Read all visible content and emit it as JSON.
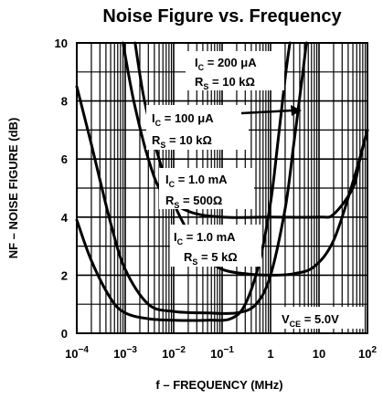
{
  "chart_data": {
    "type": "line",
    "title": "Noise Figure vs. Frequency",
    "xlabel": "f – FREQUENCY (MHz)",
    "ylabel": "NF – NOISE FIGURE (dB)",
    "x_scale": "log",
    "xlim": [
      0.0001,
      100
    ],
    "ylim": [
      0,
      10
    ],
    "grid": true,
    "x_tick_labels": [
      {
        "base": "10",
        "exp": "−4"
      },
      {
        "base": "10",
        "exp": "−3"
      },
      {
        "base": "10",
        "exp": "−2"
      },
      {
        "base": "10",
        "exp": "−1"
      },
      {
        "base": "1",
        "exp": ""
      },
      {
        "base": "10",
        "exp": ""
      },
      {
        "base": "10",
        "exp": "2"
      }
    ],
    "y_tick_labels": [
      "0",
      "2",
      "4",
      "6",
      "8",
      "10"
    ],
    "condition_label": {
      "main": "V",
      "sub": "CE",
      "value": " = 5.0V"
    },
    "series": [
      {
        "ic": "I",
        "ic_sub": "C",
        "ic_value": " = 200 μA",
        "rs": "R",
        "rs_sub": "S",
        "rs_value": " = 10 kΩ",
        "points": [
          [
            0.0009,
            10
          ],
          [
            0.0015,
            8
          ],
          [
            0.003,
            6
          ],
          [
            0.006,
            4.8
          ],
          [
            0.02,
            4.2
          ],
          [
            0.1,
            4.0
          ],
          [
            1,
            4.0
          ],
          [
            10,
            4.0
          ],
          [
            20,
            4.1
          ],
          [
            50,
            5
          ],
          [
            70,
            6
          ],
          [
            100,
            7
          ]
        ]
      },
      {
        "ic": "I",
        "ic_sub": "C",
        "ic_value": " = 100 μA",
        "rs": "R",
        "rs_sub": "S",
        "rs_value": " = 10 kΩ",
        "points": [
          [
            0.0016,
            10
          ],
          [
            0.0025,
            8
          ],
          [
            0.005,
            6
          ],
          [
            0.01,
            4.5
          ],
          [
            0.02,
            3.5
          ],
          [
            0.05,
            2.6
          ],
          [
            0.1,
            2.2
          ],
          [
            0.3,
            2.05
          ],
          [
            1,
            2.0
          ],
          [
            3,
            2.05
          ],
          [
            8,
            2.3
          ],
          [
            20,
            3.2
          ],
          [
            50,
            5.2
          ],
          [
            100,
            7
          ]
        ]
      },
      {
        "ic": "I",
        "ic_sub": "C",
        "ic_value": " = 1.0 mA",
        "rs": "R",
        "rs_sub": "S",
        "rs_value": " = 500Ω",
        "points": [
          [
            0.0001,
            3.9
          ],
          [
            0.0002,
            2.5
          ],
          [
            0.0005,
            1.2
          ],
          [
            0.001,
            0.7
          ],
          [
            0.003,
            0.5
          ],
          [
            0.01,
            0.45
          ],
          [
            0.05,
            0.45
          ],
          [
            0.15,
            0.5
          ],
          [
            0.3,
            1
          ],
          [
            0.6,
            2.5
          ],
          [
            1,
            4.5
          ],
          [
            1.4,
            6.5
          ],
          [
            2,
            8.8
          ],
          [
            2.5,
            10
          ]
        ]
      },
      {
        "ic": "I",
        "ic_sub": "C",
        "ic_value": " = 1.0 mA",
        "rs": "R",
        "rs_sub": "S",
        "rs_value": " = 5 kΩ",
        "points": [
          [
            0.0001,
            8.5
          ],
          [
            0.0002,
            6.5
          ],
          [
            0.0005,
            3.8
          ],
          [
            0.001,
            2.2
          ],
          [
            0.003,
            1.0
          ],
          [
            0.01,
            0.75
          ],
          [
            0.05,
            0.7
          ],
          [
            0.2,
            0.7
          ],
          [
            0.5,
            1.0
          ],
          [
            1,
            2
          ],
          [
            2,
            4.3
          ],
          [
            3,
            6.5
          ],
          [
            4.5,
            8.8
          ],
          [
            5.5,
            10
          ]
        ]
      }
    ]
  }
}
